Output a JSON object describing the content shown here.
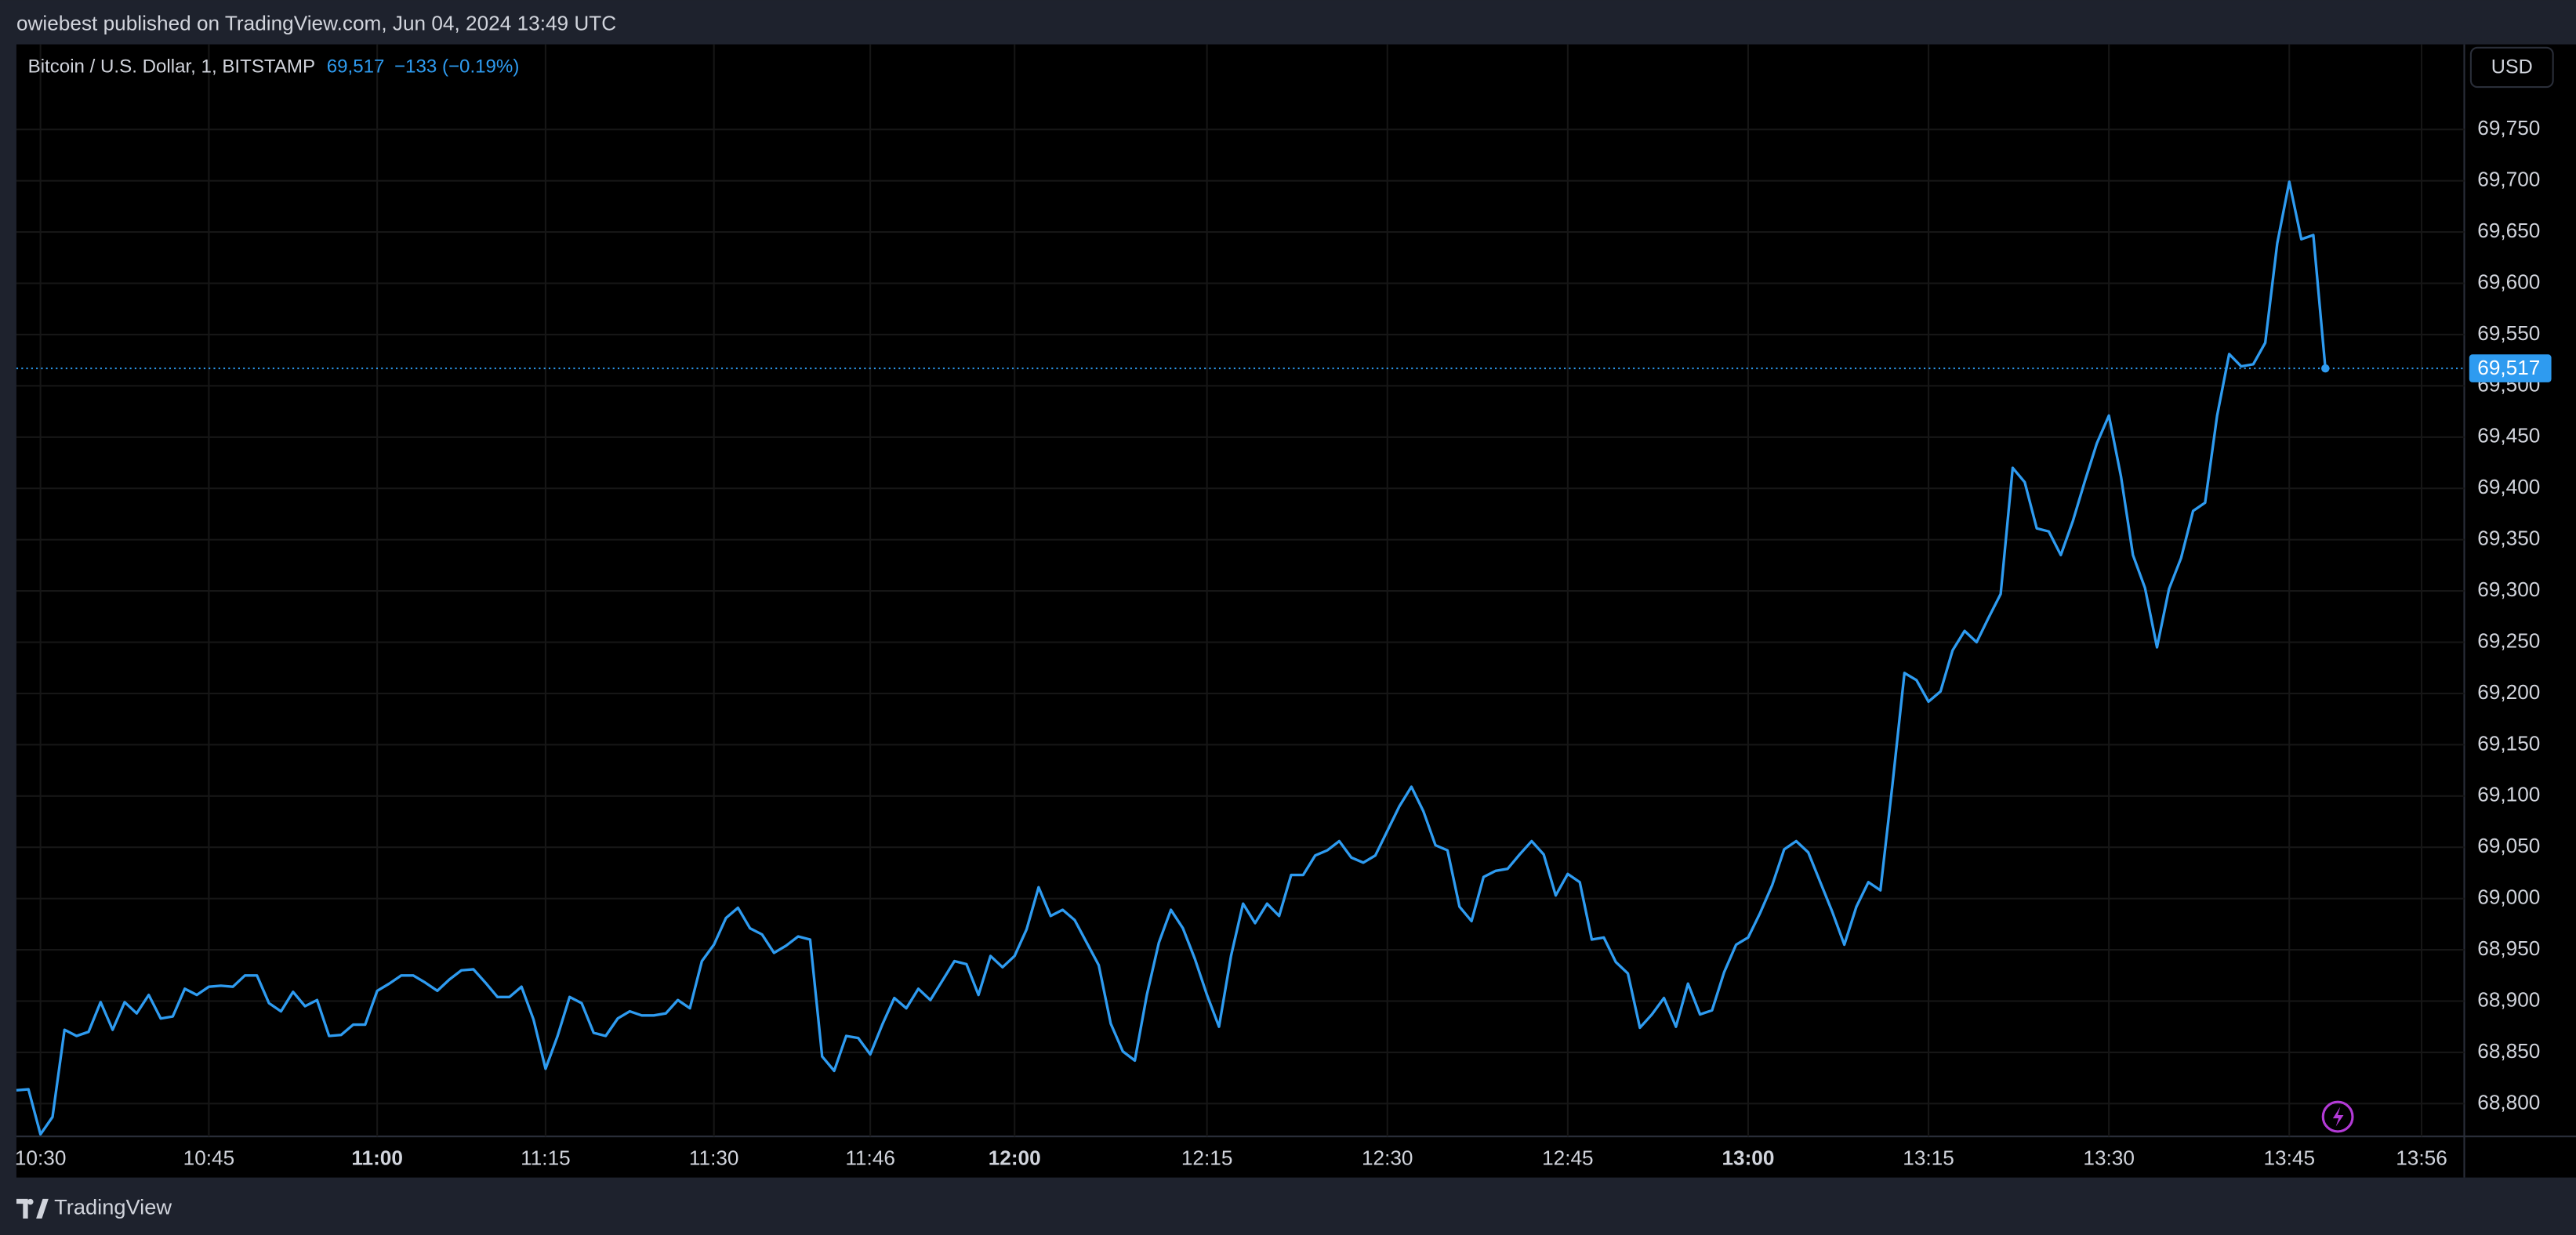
{
  "header": {
    "text": "owiebest published on TradingView.com, Jun 04, 2024 13:49 UTC"
  },
  "footer": {
    "brand": "TradingView"
  },
  "chart_data": {
    "type": "line",
    "title": "Bitcoin / U.S. Dollar, 1, BITSTAMP",
    "last_price": {
      "value": 69517,
      "label": "69,517"
    },
    "change": "−133 (−0.19%)",
    "currency": "USD",
    "color": "#2e9bf0",
    "grid": true,
    "categories": [
      null,
      null,
      "10:30",
      null,
      null,
      null,
      null,
      null,
      null,
      null,
      null,
      null,
      null,
      null,
      null,
      null,
      "10:45",
      null,
      null,
      null,
      null,
      null,
      null,
      null,
      null,
      null,
      null,
      null,
      null,
      null,
      "11:00",
      null,
      null,
      null,
      null,
      null,
      null,
      null,
      null,
      null,
      null,
      null,
      null,
      null,
      "11:15",
      null,
      null,
      null,
      null,
      null,
      null,
      null,
      null,
      null,
      null,
      null,
      null,
      null,
      "11:30",
      null,
      null,
      null,
      null,
      null,
      null,
      null,
      null,
      null,
      null,
      null,
      null,
      "11:46",
      null,
      null,
      null,
      null,
      null,
      null,
      null,
      null,
      null,
      null,
      null,
      "12:00",
      null,
      null,
      null,
      null,
      null,
      null,
      null,
      null,
      null,
      null,
      null,
      null,
      null,
      null,
      null,
      "12:15",
      null,
      null,
      null,
      null,
      null,
      null,
      null,
      null,
      null,
      null,
      null,
      null,
      null,
      null,
      "12:30",
      null,
      null,
      null,
      null,
      null,
      null,
      null,
      null,
      null,
      null,
      null,
      null,
      null,
      null,
      "12:45",
      null,
      null,
      null,
      null,
      null,
      null,
      null,
      null,
      null,
      null,
      null,
      null,
      null,
      null,
      "13:00",
      null,
      null,
      null,
      null,
      null,
      null,
      null,
      null,
      null,
      null,
      null,
      null,
      null,
      null,
      "13:15",
      null,
      null,
      null,
      null,
      null,
      null,
      null,
      null,
      null,
      null,
      null,
      null,
      null,
      null,
      "13:30",
      null,
      null,
      null,
      null,
      null,
      null,
      null,
      null,
      null,
      null,
      null,
      null,
      null,
      null,
      "13:45",
      null,
      null,
      null,
      null,
      null,
      null,
      null,
      null,
      null,
      null,
      "13:56"
    ],
    "values": [
      68813,
      68814,
      68770,
      68787,
      68872,
      68866,
      68870,
      68899,
      68872,
      68899,
      68888,
      68906,
      68883,
      68885,
      68912,
      68906,
      68914,
      68915,
      68914,
      68925,
      68925,
      68898,
      68890,
      68909,
      68895,
      68901,
      68866,
      68867,
      68877,
      68877,
      68910,
      68917,
      68925,
      68925,
      68918,
      68910,
      68921,
      68930,
      68931,
      68918,
      68904,
      68904,
      68914,
      68882,
      68834,
      68866,
      68904,
      68898,
      68869,
      68866,
      68883,
      68890,
      68886,
      68886,
      68888,
      68901,
      68893,
      68939,
      68955,
      68981,
      68991,
      68971,
      68965,
      68947,
      68954,
      68963,
      68960,
      68846,
      68832,
      68866,
      68864,
      68848,
      68877,
      68903,
      68893,
      68912,
      68901,
      68920,
      68939,
      68936,
      68906,
      68944,
      68933,
      68944,
      68970,
      69011,
      68983,
      68989,
      68979,
      68957,
      68935,
      68878,
      68851,
      68842,
      68906,
      68957,
      68989,
      68971,
      68941,
      68906,
      68875,
      68944,
      68995,
      68976,
      68995,
      68983,
      69023,
      69023,
      69042,
      69047,
      69056,
      69040,
      69035,
      69042,
      69066,
      69090,
      69109,
      69085,
      69052,
      69047,
      68992,
      68978,
      69021,
      69027,
      69029,
      69043,
      69056,
      69043,
      69003,
      69024,
      69016,
      68960,
      68962,
      68938,
      68927,
      68874,
      68887,
      68903,
      68875,
      68917,
      68887,
      68891,
      68928,
      68955,
      68962,
      68986,
      69013,
      69048,
      69056,
      69045,
      69016,
      68987,
      68955,
      68992,
      69016,
      69008,
      69111,
      69220,
      69213,
      69192,
      69202,
      69242,
      69261,
      69250,
      69274,
      69297,
      69420,
      69406,
      69361,
      69358,
      69335,
      69368,
      69407,
      69444,
      69471,
      69412,
      69335,
      69303,
      69245,
      69302,
      69332,
      69378,
      69386,
      69471,
      69531,
      69519,
      69521,
      69542,
      69639,
      69699,
      69643,
      69647,
      69517,
      null,
      null,
      null,
      null,
      null,
      null,
      null,
      null
    ],
    "ylim": [
      68768,
      69833
    ],
    "yticks": [
      {
        "value": 68800,
        "label": "68,800"
      },
      {
        "value": 68850,
        "label": "68,850"
      },
      {
        "value": 68900,
        "label": "68,900"
      },
      {
        "value": 68950,
        "label": "68,950"
      },
      {
        "value": 69000,
        "label": "69,000"
      },
      {
        "value": 69050,
        "label": "69,050"
      },
      {
        "value": 69100,
        "label": "69,100"
      },
      {
        "value": 69150,
        "label": "69,150"
      },
      {
        "value": 69200,
        "label": "69,200"
      },
      {
        "value": 69250,
        "label": "69,250"
      },
      {
        "value": 69300,
        "label": "69,300"
      },
      {
        "value": 69350,
        "label": "69,350"
      },
      {
        "value": 69400,
        "label": "69,400"
      },
      {
        "value": 69450,
        "label": "69,450"
      },
      {
        "value": 69500,
        "label": "69,500"
      },
      {
        "value": 69550,
        "label": "69,550"
      },
      {
        "value": 69600,
        "label": "69,600"
      },
      {
        "value": 69650,
        "label": "69,650"
      },
      {
        "value": 69700,
        "label": "69,700"
      },
      {
        "value": 69750,
        "label": "69,750"
      }
    ]
  }
}
